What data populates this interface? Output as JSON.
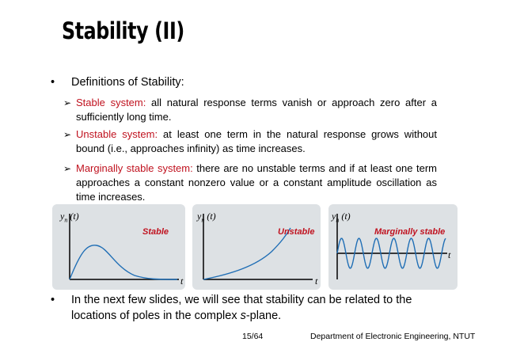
{
  "slide": {
    "title": "Stability (II)",
    "bullet1": "Definitions of Stability:",
    "stable_term": "Stable system:",
    "stable_text": " all natural response terms vanish or approach zero after a sufficiently long time.",
    "unstable_term": "Unstable system:",
    "unstable_text": " at least one term in the natural response grows without bound (i.e., approaches infinity) as time increases.",
    "marginal_term": "Marginally stable system:",
    "marginal_text": " there are no unstable terms and if at least one term approaches a constant nonzero value or a constant amplitude oscillation as time increases.",
    "bullet2_line1": "In the next few slides, we will see that stability can be related to the",
    "bullet2_line2_pre": "locations of poles in the complex ",
    "bullet2_line2_s": "s",
    "bullet2_line2_post": "-plane."
  },
  "plots": {
    "ylabel_y": "y",
    "ylabel_sub": "n",
    "ylabel_t": "(t)",
    "xlabel": "t",
    "stable_label": "Stable",
    "unstable_label": "Unstable",
    "marginal_label": "Marginally stable"
  },
  "footer": {
    "page": "15/64",
    "department": "Department of Electronic Engineering, NTUT"
  },
  "colors": {
    "accent_red": "#c0121f",
    "curve_blue": "#1f6eb5",
    "panel_bg": "#dde1e4"
  },
  "icons": {
    "bullet": "•",
    "arrow": "➢"
  }
}
